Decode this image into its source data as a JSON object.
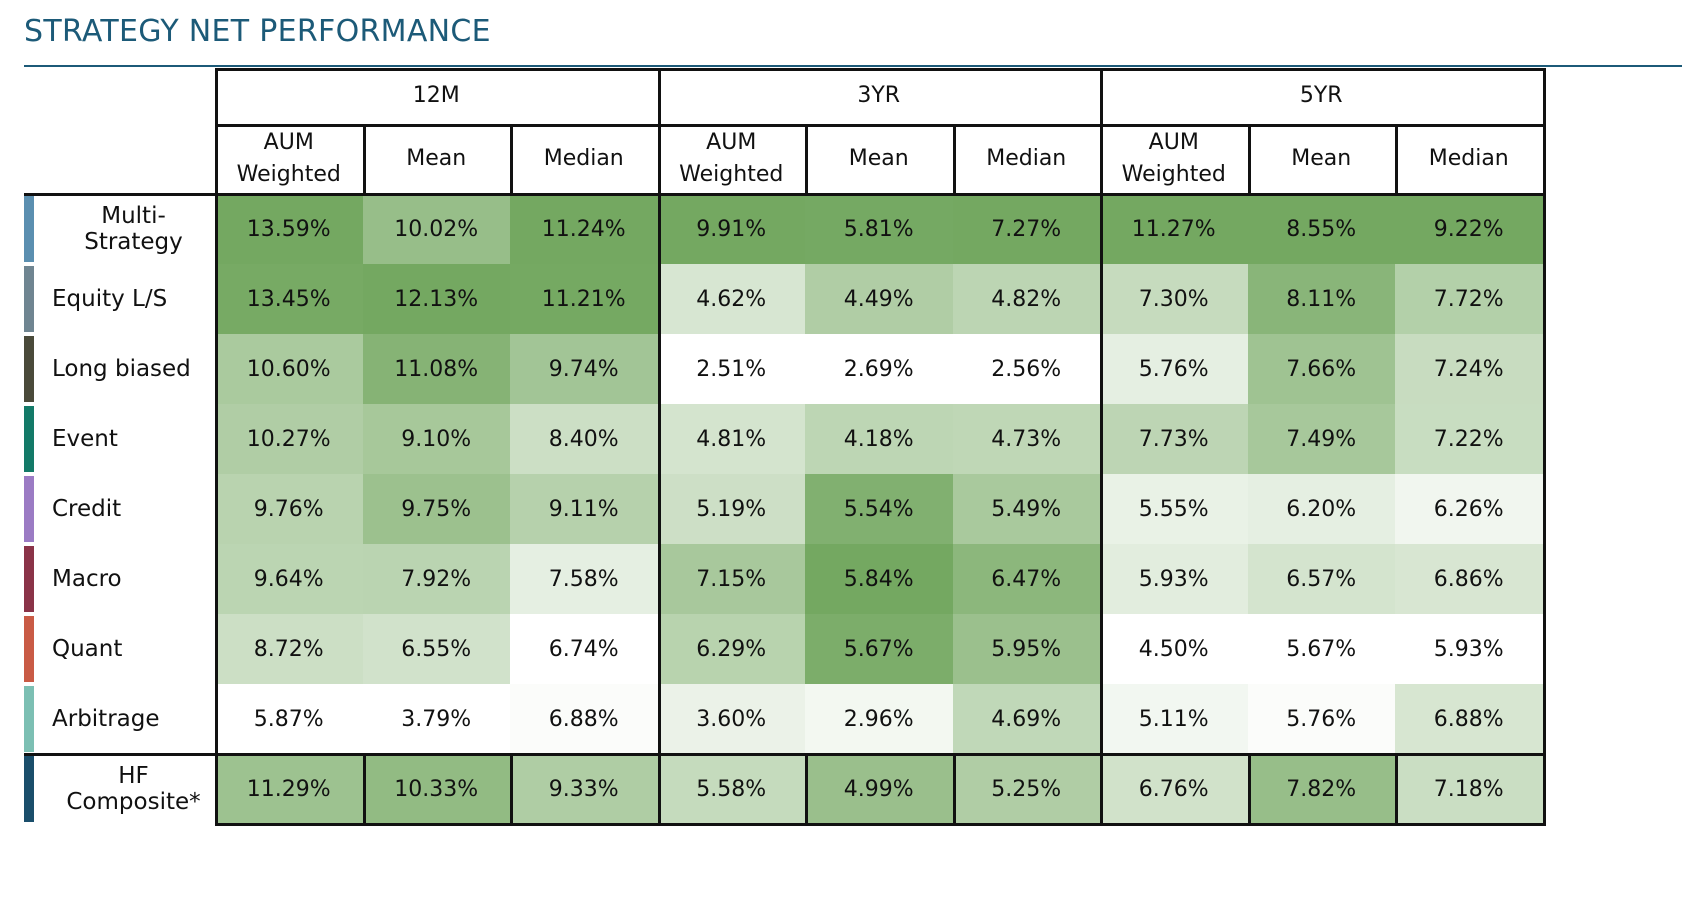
{
  "title": "STRATEGY NET PERFORMANCE",
  "chart_data": {
    "type": "table",
    "title": "STRATEGY NET PERFORMANCE",
    "periods": [
      "12M",
      "3YR",
      "5YR"
    ],
    "columns": [
      {
        "period": "12M",
        "label": "AUM Weighted"
      },
      {
        "period": "12M",
        "label": "Mean"
      },
      {
        "period": "12M",
        "label": "Median"
      },
      {
        "period": "3YR",
        "label": "AUM Weighted"
      },
      {
        "period": "3YR",
        "label": "Mean"
      },
      {
        "period": "3YR",
        "label": "Median"
      },
      {
        "period": "5YR",
        "label": "AUM Weighted"
      },
      {
        "period": "5YR",
        "label": "Mean"
      },
      {
        "period": "5YR",
        "label": "Median"
      }
    ],
    "rows": [
      {
        "name": "Multi-Strategy",
        "color": "#5b8fb0",
        "values": [
          "13.59%",
          "10.02%",
          "11.24%",
          "9.91%",
          "5.81%",
          "7.27%",
          "11.27%",
          "8.55%",
          "9.22%"
        ]
      },
      {
        "name": "Equity L/S",
        "color": "#6f8591",
        "values": [
          "13.45%",
          "12.13%",
          "11.21%",
          "4.62%",
          "4.49%",
          "4.82%",
          "7.30%",
          "8.11%",
          "7.72%"
        ]
      },
      {
        "name": "Long biased",
        "color": "#4a4a3a",
        "values": [
          "10.60%",
          "11.08%",
          "9.74%",
          "2.51%",
          "2.69%",
          "2.56%",
          "5.76%",
          "7.66%",
          "7.24%"
        ]
      },
      {
        "name": "Event",
        "color": "#137a68",
        "values": [
          "10.27%",
          "9.10%",
          "8.40%",
          "4.81%",
          "4.18%",
          "4.73%",
          "7.73%",
          "7.49%",
          "7.22%"
        ]
      },
      {
        "name": "Credit",
        "color": "#9b7bc4",
        "values": [
          "9.76%",
          "9.75%",
          "9.11%",
          "5.19%",
          "5.54%",
          "5.49%",
          "5.55%",
          "6.20%",
          "6.26%"
        ]
      },
      {
        "name": "Macro",
        "color": "#8a3348",
        "values": [
          "9.64%",
          "7.92%",
          "7.58%",
          "7.15%",
          "5.84%",
          "6.47%",
          "5.93%",
          "6.57%",
          "6.86%"
        ]
      },
      {
        "name": "Quant",
        "color": "#c95b45",
        "values": [
          "8.72%",
          "6.55%",
          "6.74%",
          "6.29%",
          "5.67%",
          "5.95%",
          "4.50%",
          "5.67%",
          "5.93%"
        ]
      },
      {
        "name": "Arbitrage",
        "color": "#7cbfb3",
        "values": [
          "5.87%",
          "3.79%",
          "6.88%",
          "3.60%",
          "2.96%",
          "4.69%",
          "5.11%",
          "5.76%",
          "6.88%"
        ]
      },
      {
        "name": "HF Composite*",
        "color": "#1a4e6b",
        "values": [
          "11.29%",
          "10.33%",
          "9.33%",
          "5.58%",
          "4.99%",
          "5.25%",
          "6.76%",
          "7.82%",
          "7.18%"
        ]
      }
    ],
    "heat_colors": {
      "low": "#ffffff",
      "high": "#74a861"
    }
  }
}
